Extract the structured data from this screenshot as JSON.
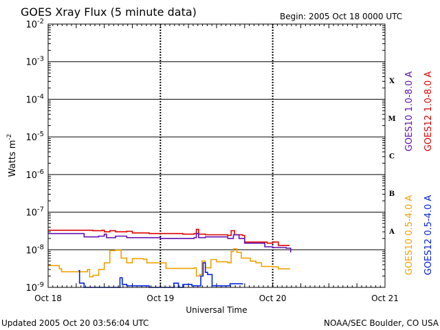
{
  "title": "GOES Xray Flux (5 minute data)",
  "begin_label": "Begin:  2005 Oct 18 0000 UTC",
  "updated_label": "Updated 2005 Oct 20 03:56:04 UTC",
  "credit_label": "NOAA/SEC Boulder, CO USA",
  "chart_data": {
    "type": "line",
    "title": "GOES Xray Flux (5 minute data)",
    "xlabel": "Universal Time",
    "ylabel": "Watts m",
    "ylabel_sup": "-2",
    "y_scale": "log",
    "ylim": [
      1e-09,
      0.01
    ],
    "xlim": [
      0,
      3
    ],
    "x_units": "days since 2005 Oct 18 0000 UTC",
    "x_ticks": [
      {
        "x": 0,
        "label": "Oct 18"
      },
      {
        "x": 1,
        "label": "Oct 19"
      },
      {
        "x": 2,
        "label": "Oct 20"
      },
      {
        "x": 3,
        "label": "Oct 21"
      }
    ],
    "y_ticks": [
      {
        "exp": -2,
        "base": "10",
        "sup": "-2"
      },
      {
        "exp": -3,
        "base": "10",
        "sup": "-3"
      },
      {
        "exp": -4,
        "base": "10",
        "sup": "-4"
      },
      {
        "exp": -5,
        "base": "10",
        "sup": "-5"
      },
      {
        "exp": -6,
        "base": "10",
        "sup": "-6"
      },
      {
        "exp": -7,
        "base": "10",
        "sup": "-7"
      },
      {
        "exp": -8,
        "base": "10",
        "sup": "-8"
      },
      {
        "exp": -9,
        "base": "10",
        "sup": "-9"
      }
    ],
    "flare_classes": [
      {
        "label": "X",
        "exp": -3.5
      },
      {
        "label": "M",
        "exp": -4.5
      },
      {
        "label": "C",
        "exp": -5.5
      },
      {
        "label": "B",
        "exp": -6.5
      },
      {
        "label": "A",
        "exp": -7.5
      }
    ],
    "grid": true,
    "legend_position": "right, rotated vertical",
    "series": [
      {
        "name": "GOES12 1.0-8.0 A",
        "color": "#e00000",
        "points": [
          [
            0,
            3.3e-08
          ],
          [
            0.3,
            3.3e-08
          ],
          [
            0.4,
            3.2e-08
          ],
          [
            0.48,
            3.3e-08
          ],
          [
            0.5,
            3e-08
          ],
          [
            0.55,
            3.2e-08
          ],
          [
            0.6,
            3e-08
          ],
          [
            0.7,
            3.1e-08
          ],
          [
            0.75,
            2.8e-08
          ],
          [
            0.85,
            2.8e-08
          ],
          [
            0.9,
            2.7e-08
          ],
          [
            1.0,
            2.7e-08
          ],
          [
            1.2,
            2.6e-08
          ],
          [
            1.3,
            2.7e-08
          ],
          [
            1.32,
            3.5e-08
          ],
          [
            1.34,
            2.6e-08
          ],
          [
            1.4,
            2.5e-08
          ],
          [
            1.55,
            2.5e-08
          ],
          [
            1.6,
            2.4e-08
          ],
          [
            1.63,
            3.2e-08
          ],
          [
            1.66,
            2.5e-08
          ],
          [
            1.73,
            2.4e-08
          ],
          [
            1.75,
            1.6e-08
          ],
          [
            1.95,
            1.5e-08
          ],
          [
            2.0,
            1.6e-08
          ],
          [
            2.05,
            1.3e-08
          ],
          [
            2.15,
            1.3e-08
          ]
        ]
      },
      {
        "name": "GOES10 1.0-8.0 A",
        "color": "#6010b0",
        "points": [
          [
            0,
            2.7e-08
          ],
          [
            0.3,
            2.7e-08
          ],
          [
            0.32,
            2.2e-08
          ],
          [
            0.45,
            2.3e-08
          ],
          [
            0.5,
            2.6e-08
          ],
          [
            0.52,
            2.1e-08
          ],
          [
            0.6,
            2.3e-08
          ],
          [
            0.7,
            2.1e-08
          ],
          [
            0.85,
            2.1e-08
          ],
          [
            1.0,
            2e-08
          ],
          [
            1.2,
            2e-08
          ],
          [
            1.3,
            2.1e-08
          ],
          [
            1.32,
            2.7e-08
          ],
          [
            1.34,
            2.1e-08
          ],
          [
            1.4,
            2.2e-08
          ],
          [
            1.55,
            2.2e-08
          ],
          [
            1.6,
            2e-08
          ],
          [
            1.65,
            2.5e-08
          ],
          [
            1.7,
            2e-08
          ],
          [
            1.75,
            1.5e-08
          ],
          [
            1.93,
            1.2e-08
          ],
          [
            2.0,
            1.15e-08
          ],
          [
            2.12,
            1.1e-08
          ],
          [
            2.16,
            8.5e-09
          ]
        ]
      },
      {
        "name": "GOES10 0.5-4.0 A",
        "color": "#f0a000",
        "points": [
          [
            0,
            3.8e-09
          ],
          [
            0.1,
            3.1e-09
          ],
          [
            0.12,
            2.6e-09
          ],
          [
            0.35,
            3e-09
          ],
          [
            0.37,
            1.9e-09
          ],
          [
            0.4,
            2.1e-09
          ],
          [
            0.45,
            3e-09
          ],
          [
            0.5,
            4.5e-09
          ],
          [
            0.55,
            9.5e-09
          ],
          [
            0.6,
            9.8e-09
          ],
          [
            0.65,
            6e-09
          ],
          [
            0.7,
            4.5e-09
          ],
          [
            0.75,
            5.8e-09
          ],
          [
            0.85,
            5.6e-09
          ],
          [
            0.88,
            4.5e-09
          ],
          [
            1.0,
            4.5e-09
          ],
          [
            1.05,
            3.2e-09
          ],
          [
            1.3,
            3.3e-09
          ],
          [
            1.32,
            2e-09
          ],
          [
            1.35,
            2.2e-09
          ],
          [
            1.37,
            5e-09
          ],
          [
            1.4,
            3.3e-09
          ],
          [
            1.45,
            5.5e-09
          ],
          [
            1.5,
            4.8e-09
          ],
          [
            1.6,
            4.5e-09
          ],
          [
            1.63,
            9e-09
          ],
          [
            1.65,
            1.05e-08
          ],
          [
            1.68,
            8.5e-09
          ],
          [
            1.72,
            6e-09
          ],
          [
            1.8,
            5e-09
          ],
          [
            1.85,
            4.5e-09
          ],
          [
            1.9,
            3.6e-09
          ],
          [
            2.0,
            3.5e-09
          ],
          [
            2.05,
            3.1e-09
          ],
          [
            2.15,
            3e-09
          ]
        ]
      },
      {
        "name": "GOES12 0.5-4.0 A",
        "color": "#0020e0",
        "points": [
          [
            0.27,
            2.8e-09
          ],
          [
            0.28,
            1.3e-09
          ],
          [
            0.31,
            1.3e-09
          ],
          [
            0.32,
            1e-09
          ],
          [
            0.62,
            1e-09
          ],
          [
            0.64,
            1.8e-09
          ],
          [
            0.66,
            1.2e-09
          ],
          [
            0.7,
            1.1e-09
          ],
          [
            0.9,
            1e-09
          ],
          [
            1.1,
            1e-09
          ],
          [
            1.12,
            1.3e-09
          ],
          [
            1.16,
            1e-09
          ],
          [
            1.2,
            1.2e-09
          ],
          [
            1.28,
            1.1e-09
          ],
          [
            1.36,
            2e-09
          ],
          [
            1.38,
            4.5e-09
          ],
          [
            1.4,
            2.5e-09
          ],
          [
            1.42,
            2.2e-09
          ],
          [
            1.46,
            1.1e-09
          ],
          [
            1.6,
            1.1e-09
          ],
          [
            1.62,
            1.25e-09
          ],
          [
            1.73,
            1.2e-09
          ]
        ]
      }
    ]
  }
}
